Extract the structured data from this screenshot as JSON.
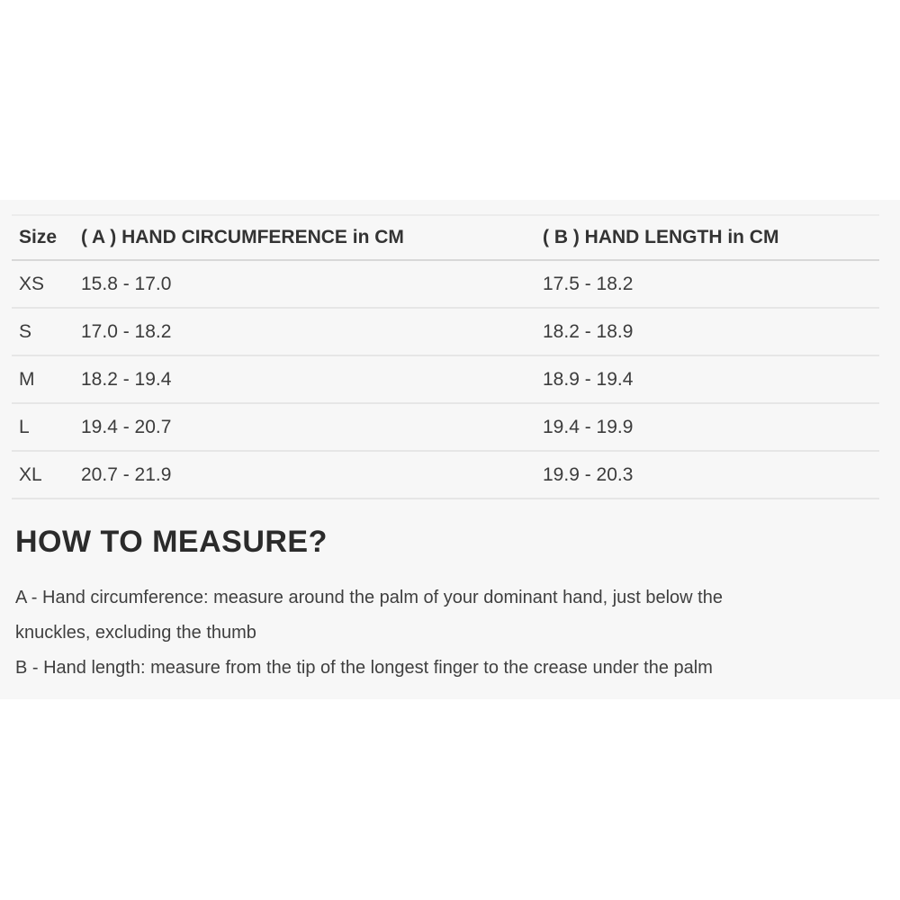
{
  "size_chart": {
    "columns": [
      {
        "label": "Size"
      },
      {
        "label": "( A ) HAND CIRCUMFERENCE in CM"
      },
      {
        "label": "( B ) HAND LENGTH in CM"
      }
    ],
    "rows": [
      {
        "size": "XS",
        "hand_circumference_cm": "15.8 - 17.0",
        "hand_length_cm": "17.5 - 18.2"
      },
      {
        "size": "S",
        "hand_circumference_cm": "17.0 - 18.2",
        "hand_length_cm": "18.2 - 18.9"
      },
      {
        "size": "M",
        "hand_circumference_cm": "18.2 - 19.4",
        "hand_length_cm": "18.9 - 19.4"
      },
      {
        "size": "L",
        "hand_circumference_cm": "19.4 - 20.7",
        "hand_length_cm": "19.4 - 19.9"
      },
      {
        "size": "XL",
        "hand_circumference_cm": "20.7 - 21.9",
        "hand_length_cm": "19.9 - 20.3"
      }
    ]
  },
  "how_to_measure": {
    "heading": "HOW TO MEASURE?",
    "lines": [
      "A - Hand circumference: measure around the palm of your dominant hand, just below the",
      "knuckles, excluding the thumb",
      "B - Hand length: measure from the tip of the longest finger to the crease under the palm"
    ]
  },
  "colors": {
    "panel_background": "#f7f7f7",
    "row_border": "#e6e6e6",
    "header_border": "#d8d8d8",
    "text": "#3c3c3c"
  }
}
